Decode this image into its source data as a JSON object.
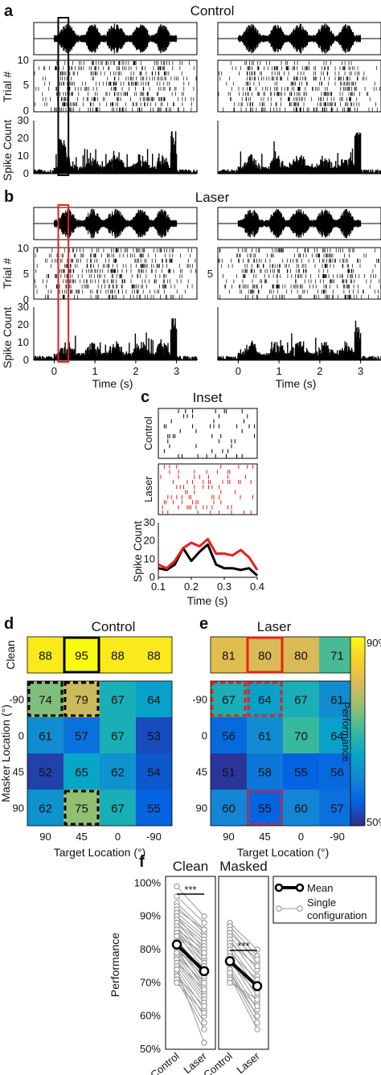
{
  "panels": {
    "a": {
      "letter": "a",
      "title": "Control"
    },
    "b": {
      "letter": "b",
      "title": "Laser"
    },
    "c": {
      "letter": "c",
      "title": "Inset"
    },
    "d": {
      "letter": "d",
      "title": "Control"
    },
    "e": {
      "letter": "e",
      "title": "Laser"
    },
    "f": {
      "letter": "f"
    }
  },
  "chart_data": [
    {
      "id": "raster-psth",
      "type": "bar",
      "panel": "a/b",
      "conditions": [
        "Control",
        "Laser"
      ],
      "raster": {
        "ylabel": "Trial #",
        "yticks_control": [
          "10",
          "5",
          "0"
        ],
        "yticks_laser": [
          "10",
          "5",
          "0"
        ],
        "yticks_laser_right": [
          "5"
        ]
      },
      "psth": {
        "ylabel": "Spike Count",
        "ylim": [
          0,
          30
        ],
        "yticks": [
          "30",
          "20",
          "10",
          "0"
        ]
      },
      "xlabel": "Time (s)",
      "xlim": [
        -0.5,
        3.5
      ],
      "xticks": [
        "0",
        "1",
        "2",
        "3"
      ],
      "highlight_window_s": [
        0.1,
        0.35
      ]
    },
    {
      "id": "inset",
      "type": "line",
      "panel": "c",
      "raster_labels": [
        "Control",
        "Laser"
      ],
      "ylabel": "Spike Count",
      "xlabel": "Time (s)",
      "xlim": [
        0.1,
        0.4
      ],
      "ylim": [
        0,
        30
      ],
      "xticks": [
        "0.1",
        "0.2",
        "0.3",
        "0.4"
      ],
      "yticks": [
        "30",
        "20",
        "10",
        "0"
      ],
      "x": [
        0.1,
        0.125,
        0.15,
        0.175,
        0.2,
        0.225,
        0.25,
        0.275,
        0.3,
        0.325,
        0.35,
        0.375,
        0.4
      ],
      "series": [
        {
          "name": "Control",
          "color": "#000000",
          "values": [
            5,
            4,
            7,
            16,
            9,
            14,
            18,
            7,
            5,
            5,
            4,
            5,
            1
          ]
        },
        {
          "name": "Laser",
          "color": "#e8211a",
          "values": [
            7,
            5,
            9,
            16,
            19,
            17,
            21,
            13,
            13,
            12,
            15,
            11,
            4
          ]
        }
      ]
    },
    {
      "id": "heatmaps",
      "type": "heatmap",
      "panel": "d/e",
      "titles": [
        "Control",
        "Laser"
      ],
      "clean_label": "Clean",
      "ylabel": "Masker Location (°)",
      "xlabel": "Target Location (°)",
      "col_labels": [
        "90",
        "45",
        "0",
        "-90"
      ],
      "row_labels": [
        "-90",
        "0",
        "45",
        "90"
      ],
      "colorbar": {
        "label": "Performance",
        "min_label": "50%",
        "max_label": "90%",
        "range": [
          50,
          90
        ]
      },
      "control": {
        "clean": [
          88,
          95,
          88,
          88
        ],
        "masked": [
          [
            74,
            79,
            67,
            64
          ],
          [
            61,
            57,
            67,
            53
          ],
          [
            52,
            65,
            62,
            54
          ],
          [
            62,
            75,
            67,
            55
          ]
        ]
      },
      "laser": {
        "clean": [
          81,
          80,
          80,
          71
        ],
        "masked": [
          [
            67,
            64,
            67,
            61
          ],
          [
            56,
            61,
            70,
            64
          ],
          [
            51,
            58,
            55,
            56
          ],
          [
            60,
            55,
            60,
            57
          ]
        ]
      }
    },
    {
      "id": "paired",
      "type": "line",
      "panel": "f",
      "subplots": [
        {
          "title": "Clean",
          "mean": [
            81.5,
            73.5
          ],
          "significance": "***"
        },
        {
          "title": "Masked",
          "mean": [
            76.5,
            69
          ],
          "significance": "***"
        }
      ],
      "categories": [
        "Control",
        "Laser"
      ],
      "ylabel": "Performance",
      "ylim": [
        50,
        102
      ],
      "yticks": [
        "100%",
        "90%",
        "80%",
        "70%",
        "60%",
        "50%"
      ],
      "legend": {
        "placement": "top-right",
        "mean": "Mean",
        "single_line1": "Single",
        "single_line2": "configuration"
      },
      "clean_pairs": [
        [
          99,
          90
        ],
        [
          96,
          88
        ],
        [
          94,
          86
        ],
        [
          93,
          85
        ],
        [
          92,
          86
        ],
        [
          91,
          84
        ],
        [
          90,
          83
        ],
        [
          90,
          80
        ],
        [
          89,
          82
        ],
        [
          88,
          79
        ],
        [
          88,
          81
        ],
        [
          87,
          77
        ],
        [
          86,
          80
        ],
        [
          86,
          76
        ],
        [
          85,
          78
        ],
        [
          85,
          74
        ],
        [
          84,
          76
        ],
        [
          83,
          73
        ],
        [
          83,
          72
        ],
        [
          82,
          71
        ],
        [
          81,
          74
        ],
        [
          81,
          70
        ],
        [
          80,
          68
        ],
        [
          80,
          72
        ],
        [
          79,
          69
        ],
        [
          78,
          67
        ],
        [
          78,
          70
        ],
        [
          77,
          66
        ],
        [
          76,
          65
        ],
        [
          76,
          68
        ],
        [
          75,
          64
        ],
        [
          74,
          62
        ],
        [
          73,
          60
        ],
        [
          72,
          63
        ],
        [
          72,
          58
        ],
        [
          71,
          56
        ],
        [
          74,
          52
        ],
        [
          70,
          61
        ],
        [
          79,
          75
        ],
        [
          84,
          79
        ]
      ],
      "masked_pairs": [
        [
          88,
          80
        ],
        [
          87,
          78
        ],
        [
          86,
          76
        ],
        [
          85,
          77
        ],
        [
          84,
          74
        ],
        [
          83,
          72
        ],
        [
          82,
          75
        ],
        [
          81,
          70
        ],
        [
          80,
          68
        ],
        [
          79,
          71
        ],
        [
          78,
          66
        ],
        [
          77,
          64
        ],
        [
          76,
          67
        ],
        [
          75,
          62
        ],
        [
          74,
          60
        ],
        [
          73,
          58
        ],
        [
          72,
          56
        ],
        [
          71,
          63
        ],
        [
          70,
          65
        ],
        [
          73,
          60
        ]
      ]
    }
  ]
}
